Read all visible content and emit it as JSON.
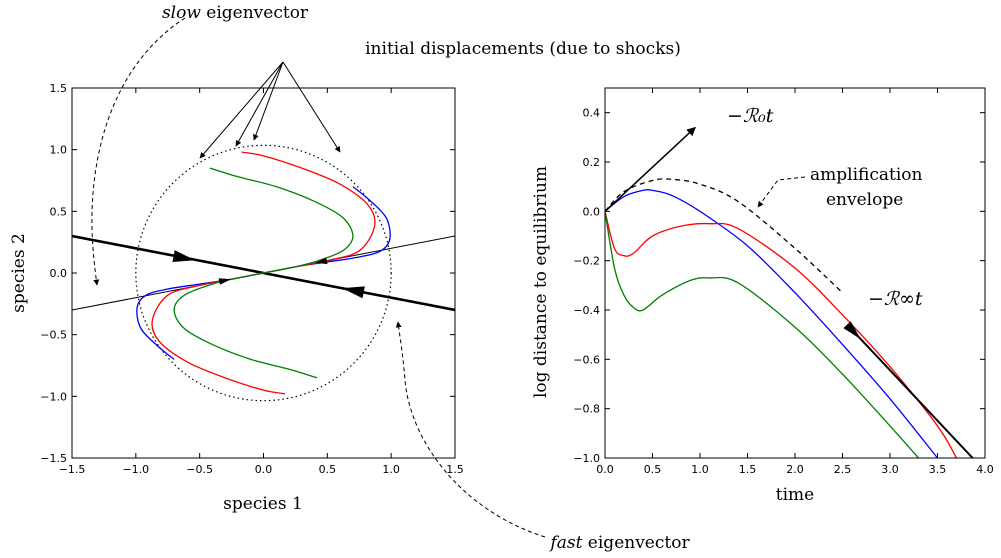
{
  "colors": {
    "blue": "#0000ff",
    "red": "#ff0000",
    "green": "#008000",
    "black": "#000000"
  },
  "annotations": {
    "slow_eigenvector": {
      "emph": "slow",
      "rest": " eigenvector"
    },
    "fast_eigenvector": {
      "emph": "fast",
      "rest": " eigenvector"
    },
    "initial_displacements": "initial displacements (due to shocks)",
    "amplification_line1": "amplification",
    "amplification_line2": "envelope",
    "r0_label": "−ℛ₀t",
    "rinf_label": "−ℛ∞t"
  },
  "chart_data": [
    {
      "type": "line",
      "xlabel": "species 1",
      "ylabel": "species 2",
      "xlim": [
        -1.5,
        1.5
      ],
      "ylim": [
        -1.5,
        1.5
      ],
      "xticks": [
        "−1.5",
        "−1.0",
        "−0.5",
        "0.0",
        "0.5",
        "1.0",
        "1.5"
      ],
      "yticks": [
        "−1.5",
        "−1.0",
        "−0.5",
        "0.0",
        "0.5",
        "1.0",
        "1.5"
      ],
      "unit_circle": {
        "radius": 1.0,
        "style": "dotted"
      },
      "eigenvectors": {
        "slow": {
          "x": [
            -1.5,
            1.5
          ],
          "y": [
            -0.3,
            0.3
          ]
        },
        "fast": {
          "x": [
            -1.5,
            1.5
          ],
          "y": [
            0.3,
            -0.3
          ]
        }
      },
      "series": [
        {
          "color": "#0000ff",
          "x": [
            -0.7,
            -0.82,
            -0.96,
            -0.99,
            -0.92,
            -0.75,
            -0.5,
            -0.25,
            0.0,
            0.25,
            0.5,
            0.75,
            0.92,
            0.99,
            0.96,
            0.82,
            0.7
          ],
          "y": [
            -0.7,
            -0.6,
            -0.45,
            -0.28,
            -0.18,
            -0.13,
            -0.09,
            -0.05,
            0.0,
            0.05,
            0.09,
            0.13,
            0.18,
            0.28,
            0.45,
            0.6,
            0.7
          ]
        },
        {
          "color": "#ff0000",
          "x": [
            0.17,
            0.0,
            -0.3,
            -0.6,
            -0.82,
            -0.87,
            -0.75,
            -0.5,
            -0.25,
            0.0,
            0.25,
            0.5,
            0.75,
            0.87,
            0.82,
            0.6,
            0.3,
            0.0,
            -0.17
          ],
          "y": [
            -0.98,
            -0.95,
            -0.85,
            -0.72,
            -0.55,
            -0.38,
            -0.18,
            -0.1,
            -0.05,
            0.0,
            0.05,
            0.1,
            0.18,
            0.38,
            0.55,
            0.72,
            0.85,
            0.95,
            0.98
          ]
        },
        {
          "color": "#008000",
          "x": [
            0.42,
            0.2,
            -0.1,
            -0.4,
            -0.62,
            -0.7,
            -0.62,
            -0.4,
            -0.2,
            0.0,
            0.2,
            0.4,
            0.62,
            0.7,
            0.62,
            0.4,
            0.1,
            -0.2,
            -0.42
          ],
          "y": [
            -0.85,
            -0.78,
            -0.7,
            -0.58,
            -0.45,
            -0.3,
            -0.18,
            -0.09,
            -0.04,
            0.0,
            0.04,
            0.09,
            0.18,
            0.3,
            0.45,
            0.58,
            0.7,
            0.78,
            0.85
          ]
        }
      ]
    },
    {
      "type": "line",
      "xlabel": "time",
      "ylabel": "log distance to equilibrium",
      "xlim": [
        0.0,
        4.0
      ],
      "ylim": [
        -1.0,
        0.5
      ],
      "xticks": [
        "0.0",
        "0.5",
        "1.0",
        "1.5",
        "2.0",
        "2.5",
        "3.0",
        "3.5",
        "4.0"
      ],
      "yticks": [
        "−1.0",
        "−0.8",
        "−0.6",
        "−0.4",
        "−0.2",
        "0.0",
        "0.2",
        "0.4"
      ],
      "series": [
        {
          "name": "envelope",
          "color": "#000000",
          "dashed": true,
          "x": [
            0.0,
            0.2,
            0.5,
            0.7,
            1.0,
            1.4,
            2.0,
            2.5
          ],
          "y": [
            0.0,
            0.08,
            0.125,
            0.13,
            0.11,
            0.04,
            -0.15,
            -0.33
          ]
        },
        {
          "color": "#0000ff",
          "x": [
            0.0,
            0.2,
            0.4,
            0.5,
            0.7,
            1.0,
            1.5,
            2.0,
            2.5,
            3.0,
            3.5
          ],
          "y": [
            0.0,
            0.06,
            0.085,
            0.085,
            0.065,
            0.0,
            -0.14,
            -0.33,
            -0.54,
            -0.76,
            -1.0
          ]
        },
        {
          "color": "#ff0000",
          "x": [
            0.0,
            0.1,
            0.2,
            0.3,
            0.5,
            0.8,
            1.1,
            1.4,
            2.0,
            2.5,
            3.0,
            3.5,
            3.7
          ],
          "y": [
            0.0,
            -0.15,
            -0.18,
            -0.17,
            -0.1,
            -0.06,
            -0.05,
            -0.07,
            -0.23,
            -0.42,
            -0.63,
            -0.87,
            -1.0
          ]
        },
        {
          "color": "#008000",
          "x": [
            0.0,
            0.1,
            0.2,
            0.3,
            0.4,
            0.6,
            0.9,
            1.1,
            1.4,
            2.0,
            2.5,
            3.0,
            3.3
          ],
          "y": [
            0.0,
            -0.23,
            -0.34,
            -0.39,
            -0.4,
            -0.34,
            -0.28,
            -0.27,
            -0.29,
            -0.47,
            -0.66,
            -0.87,
            -1.0
          ]
        },
        {
          "name": "asymptote",
          "color": "#000000",
          "x": [
            2.55,
            3.87
          ],
          "y": [
            -0.46,
            -1.0
          ]
        }
      ],
      "arrows": {
        "r0": {
          "x": [
            0.0,
            0.95
          ],
          "y": [
            0.0,
            0.34
          ]
        }
      }
    }
  ]
}
